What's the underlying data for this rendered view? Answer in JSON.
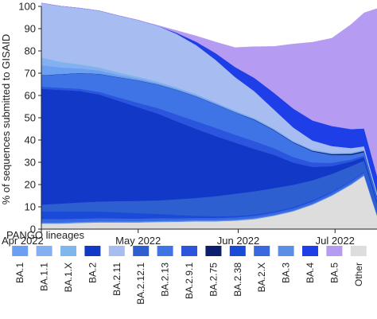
{
  "chart_data": {
    "type": "area",
    "stacked": true,
    "ylabel": "% of sequences submitted to GISAID",
    "xlabel": "",
    "ylim": [
      0,
      100
    ],
    "yticks": [
      0,
      10,
      20,
      30,
      40,
      50,
      60,
      70,
      80,
      90,
      100
    ],
    "x_ticks": [
      {
        "label": "Apr 2022",
        "day": 0
      },
      {
        "label": "May 2022",
        "day": 30
      },
      {
        "label": "Jun 2022",
        "day": 61
      },
      {
        "label": "Jul 2022",
        "day": 91
      }
    ],
    "x": [
      0,
      6,
      12,
      18,
      24,
      30,
      36,
      42,
      48,
      54,
      60,
      66,
      72,
      78,
      84,
      90,
      96,
      100,
      104
    ],
    "legend_title": "PANGO lineages",
    "legend_position": "bottom",
    "series": [
      {
        "name": "Other",
        "color": "#dddddd",
        "values": [
          2.5,
          2.5,
          2.8,
          3.0,
          3.0,
          3.0,
          3.2,
          3.3,
          3.5,
          3.5,
          3.8,
          4.5,
          6.0,
          8.0,
          11.0,
          15.0,
          20.0,
          24.0,
          6.0
        ]
      },
      {
        "name": "BA.3",
        "color": "#5b8fe6",
        "values": [
          0.5,
          0.5,
          0.5,
          0.5,
          0.5,
          0.5,
          0.5,
          0.5,
          0.5,
          0.5,
          0.5,
          0.5,
          0.4,
          0.4,
          0.4,
          0.4,
          0.4,
          0.4,
          0.4
        ]
      },
      {
        "name": "BA.2.X",
        "color": "#3a68e0",
        "values": [
          1.5,
          1.5,
          1.4,
          1.4,
          1.3,
          1.2,
          1.2,
          1.1,
          1.0,
          1.0,
          1.0,
          1.0,
          1.0,
          1.0,
          1.0,
          1.0,
          1.0,
          1.0,
          1.0
        ]
      },
      {
        "name": "BA.2.38",
        "color": "#1a4bd8",
        "values": [
          3.5,
          3.5,
          3.3,
          3.0,
          2.8,
          2.5,
          2.0,
          1.5,
          1.0,
          0.8,
          0.6,
          0.5,
          0.5,
          0.5,
          0.5,
          0.4,
          0.4,
          0.4,
          0.3
        ]
      },
      {
        "name": "BA.2.12.1",
        "color": "#2d5fd0",
        "values": [
          3.0,
          3.5,
          4.0,
          4.5,
          5.0,
          5.5,
          6.0,
          7.0,
          8.0,
          9.0,
          10.0,
          10.5,
          10.5,
          10.0,
          9.0,
          8.0,
          6.5,
          5.0,
          4.0
        ]
      },
      {
        "name": "BA.2",
        "color": "#1238c8",
        "values": [
          52.0,
          51.0,
          50.0,
          48.0,
          45.0,
          42.0,
          39.0,
          35.0,
          31.0,
          27.0,
          23.0,
          19.0,
          15.0,
          10.0,
          6.0,
          3.5,
          2.0,
          1.5,
          1.0
        ]
      },
      {
        "name": "BA.2.9.1",
        "color": "#2a55dc",
        "values": [
          1.0,
          1.0,
          1.0,
          1.2,
          1.5,
          2.0,
          2.5,
          3.0,
          3.5,
          3.7,
          3.5,
          3.5,
          3.0,
          2.5,
          2.0,
          1.5,
          1.0,
          0.8,
          0.5
        ]
      },
      {
        "name": "BA.2.13",
        "color": "#3f74e6",
        "values": [
          5.0,
          6.0,
          7.0,
          8.0,
          9.0,
          10.0,
          10.5,
          11.0,
          11.0,
          10.5,
          10.0,
          9.5,
          8.0,
          6.5,
          5.0,
          3.5,
          2.0,
          1.5,
          1.2
        ]
      },
      {
        "name": "BA.2.75",
        "color": "#0b1f6e",
        "values": [
          0.1,
          0.1,
          0.1,
          0.1,
          0.1,
          0.1,
          0.1,
          0.1,
          0.1,
          0.1,
          0.1,
          0.2,
          0.2,
          0.2,
          0.3,
          0.4,
          0.5,
          0.5,
          0.5
        ]
      },
      {
        "name": "BA.1",
        "color": "#6b9ff2",
        "values": [
          4.5,
          3.0,
          2.0,
          1.5,
          1.0,
          0.8,
          0.5,
          0.5,
          0.4,
          0.4,
          0.3,
          0.3,
          0.3,
          0.2,
          0.2,
          0.2,
          0.2,
          0.2,
          0.2
        ]
      },
      {
        "name": "BA.1.1",
        "color": "#84aff0",
        "values": [
          3.0,
          2.0,
          1.5,
          1.0,
          0.8,
          0.5,
          0.5,
          0.4,
          0.4,
          0.3,
          0.3,
          0.2,
          0.2,
          0.2,
          0.2,
          0.2,
          0.2,
          0.2,
          0.2
        ]
      },
      {
        "name": "BA.1.X",
        "color": "#7fb6ec",
        "values": [
          0.5,
          0.5,
          0.4,
          0.4,
          0.3,
          0.3,
          0.3,
          0.2,
          0.2,
          0.2,
          0.2,
          0.2,
          0.2,
          0.2,
          0.2,
          0.2,
          0.2,
          0.2,
          0.2
        ]
      },
      {
        "name": "BA.2.11",
        "color": "#a7bdf2",
        "values": [
          24.4,
          25.0,
          25.2,
          25.4,
          25.5,
          25.4,
          25.0,
          24.0,
          22.0,
          19.0,
          15.0,
          12.0,
          8.5,
          6.0,
          4.0,
          3.0,
          2.0,
          1.5,
          1.0
        ]
      },
      {
        "name": "BA.4",
        "color": "#1e3ee8",
        "values": [
          0.0,
          0.0,
          0.0,
          0.0,
          0.0,
          0.0,
          0.0,
          0.5,
          1.5,
          3.0,
          4.5,
          6.0,
          7.5,
          8.5,
          9.0,
          9.0,
          8.5,
          8.0,
          7.5
        ]
      },
      {
        "name": "BA.5",
        "color": "#b59cf2",
        "values": [
          0.0,
          0.0,
          0.0,
          0.0,
          0.0,
          0.0,
          0.2,
          1.0,
          2.6,
          5.0,
          8.7,
          14.0,
          20.7,
          28.9,
          35.1,
          39.4,
          47.0,
          51.9,
          75.0
        ]
      }
    ],
    "legend": [
      {
        "name": "BA.1",
        "color": "#6b9ff2"
      },
      {
        "name": "BA.1.1",
        "color": "#84aff0"
      },
      {
        "name": "BA.1.X",
        "color": "#7fb6ec"
      },
      {
        "name": "BA.2",
        "color": "#1238c8"
      },
      {
        "name": "BA.2.11",
        "color": "#a7bdf2"
      },
      {
        "name": "BA.2.12.1",
        "color": "#2d5fd0"
      },
      {
        "name": "BA.2.13",
        "color": "#3f74e6"
      },
      {
        "name": "BA.2.9.1",
        "color": "#2a55dc"
      },
      {
        "name": "BA.2.75",
        "color": "#0b1f6e"
      },
      {
        "name": "BA.2.38",
        "color": "#1a4bd8"
      },
      {
        "name": "BA.2.X",
        "color": "#3a68e0"
      },
      {
        "name": "BA.3",
        "color": "#5b8fe6"
      },
      {
        "name": "BA.4",
        "color": "#1e3ee8"
      },
      {
        "name": "BA.5",
        "color": "#b59cf2"
      },
      {
        "name": "Other",
        "color": "#dddddd"
      }
    ]
  }
}
